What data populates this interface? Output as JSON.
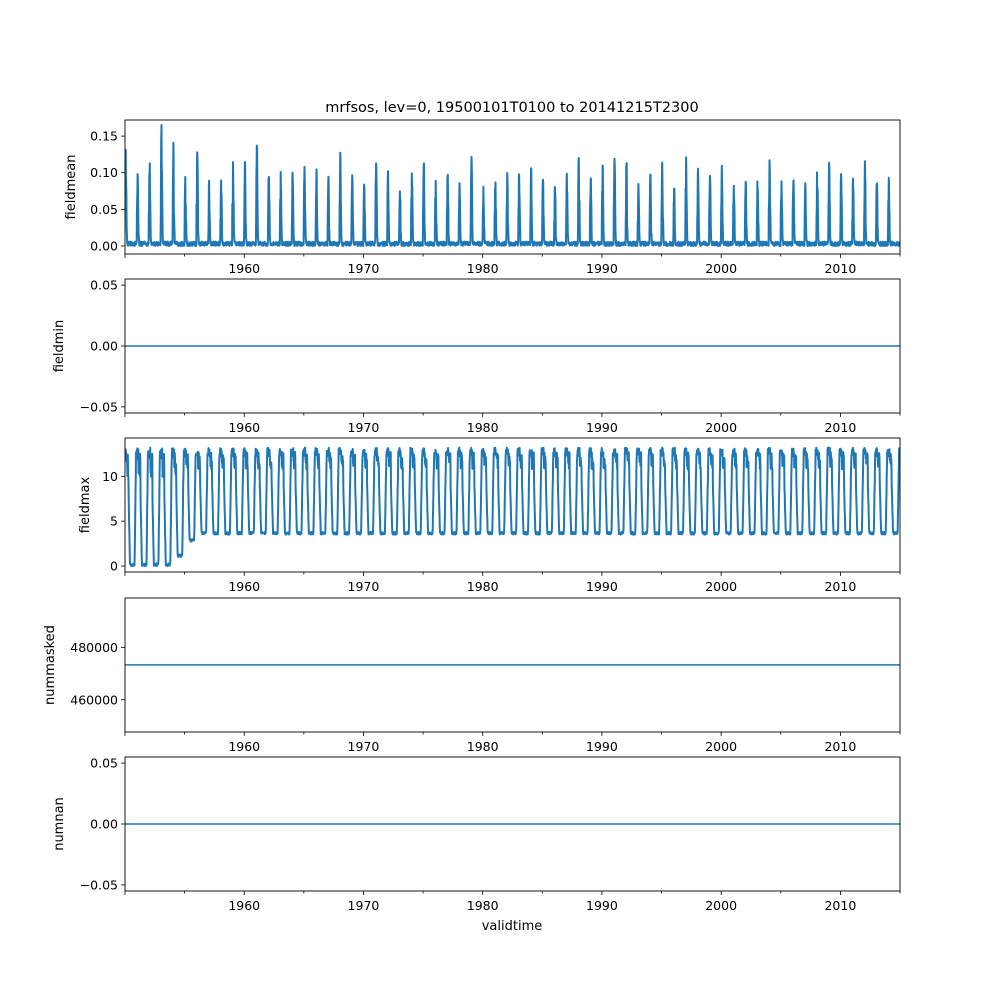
{
  "chart_data": {
    "type": "line",
    "title": "mrfsos, lev=0, 19500101T0100 to 20141215T2300",
    "xlabel": "validtime",
    "xlim": [
      1950.0,
      2015.0
    ],
    "x_major_ticks": [
      1960,
      1970,
      1980,
      1990,
      2000,
      2010
    ],
    "x_minor_step": 5,
    "line_color": "#1f77b4",
    "panels": [
      {
        "ylabel": "fieldmean",
        "ylim": [
          -0.011,
          0.172
        ],
        "yticks": [
          0.0,
          0.05,
          0.1,
          0.15
        ],
        "ytick_labels": [
          "0.00",
          "0.05",
          "0.10",
          "0.15"
        ],
        "kind": "seasonal_peaks",
        "years": [
          1950,
          1951,
          1952,
          1953,
          1954,
          1955,
          1956,
          1957,
          1958,
          1959,
          1960,
          1961,
          1962,
          1963,
          1964,
          1965,
          1966,
          1967,
          1968,
          1969,
          1970,
          1971,
          1972,
          1973,
          1974,
          1975,
          1976,
          1977,
          1978,
          1979,
          1980,
          1981,
          1982,
          1983,
          1984,
          1985,
          1986,
          1987,
          1988,
          1989,
          1990,
          1991,
          1992,
          1993,
          1994,
          1995,
          1996,
          1997,
          1998,
          1999,
          2000,
          2001,
          2002,
          2003,
          2004,
          2005,
          2006,
          2007,
          2008,
          2009,
          2010,
          2011,
          2012,
          2013,
          2014
        ],
        "annual_peak": [
          0.128,
          0.095,
          0.112,
          0.165,
          0.137,
          0.092,
          0.127,
          0.085,
          0.086,
          0.112,
          0.114,
          0.138,
          0.096,
          0.097,
          0.096,
          0.107,
          0.103,
          0.094,
          0.124,
          0.097,
          0.083,
          0.11,
          0.098,
          0.081,
          0.096,
          0.11,
          0.087,
          0.096,
          0.084,
          0.119,
          0.076,
          0.094,
          0.095,
          0.096,
          0.102,
          0.092,
          0.08,
          0.096,
          0.119,
          0.089,
          0.108,
          0.119,
          0.112,
          0.082,
          0.094,
          0.109,
          0.076,
          0.119,
          0.103,
          0.096,
          0.105,
          0.079,
          0.084,
          0.095,
          0.117,
          0.086,
          0.086,
          0.082,
          0.107,
          0.11,
          0.094,
          0.09,
          0.11,
          0.084,
          0.09
        ],
        "annual_min": 0.0
      },
      {
        "ylabel": "fieldmin",
        "ylim": [
          -0.055,
          0.055
        ],
        "yticks": [
          -0.05,
          0.0,
          0.05
        ],
        "ytick_labels": [
          "−0.05",
          "0.00",
          "0.05"
        ],
        "kind": "constant",
        "value": 0.0
      },
      {
        "ylabel": "fieldmax",
        "ylim": [
          -0.67,
          14.27
        ],
        "yticks": [
          0,
          5,
          10
        ],
        "ytick_labels": [
          "0",
          "5",
          "10"
        ],
        "kind": "seasonal_dips",
        "annual_max": 13.2,
        "annual_min_by_year": {
          "1950": 0.0,
          "1951": 0.0,
          "1952": 0.0,
          "1953": 0.0,
          "1954": 1.0,
          "1955": 2.7
        },
        "annual_min_default": 3.5
      },
      {
        "ylabel": "nummasked",
        "ylim": [
          447700,
          498850
        ],
        "yticks": [
          460000,
          480000
        ],
        "ytick_labels": [
          "460000",
          "480000"
        ],
        "kind": "constant",
        "value": 473300
      },
      {
        "ylabel": "numnan",
        "ylim": [
          -0.055,
          0.055
        ],
        "yticks": [
          -0.05,
          0.0,
          0.05
        ],
        "ytick_labels": [
          "−0.05",
          "0.00",
          "0.05"
        ],
        "kind": "constant",
        "value": 0.0
      }
    ]
  }
}
